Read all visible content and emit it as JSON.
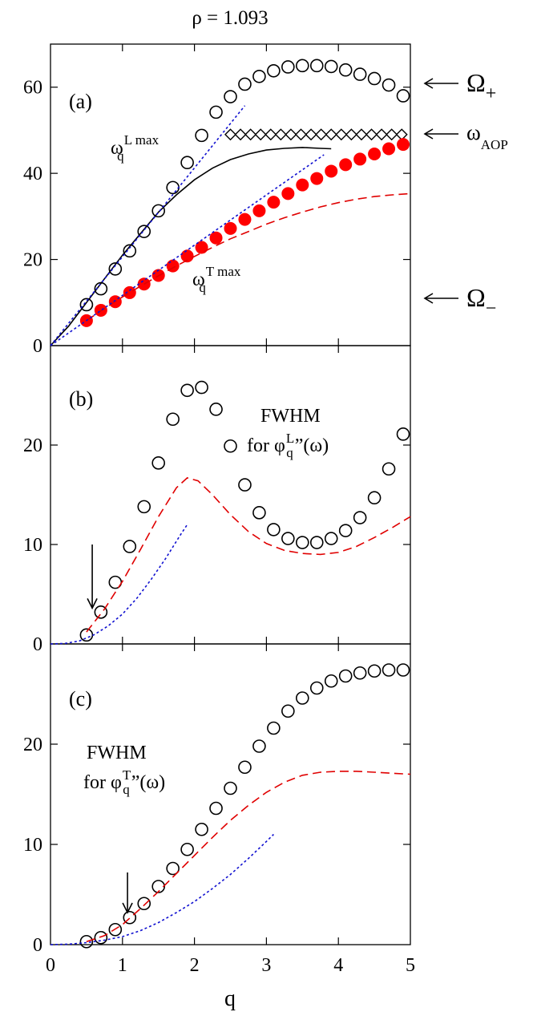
{
  "title": "ρ = 1.093",
  "xlabel": "q",
  "x_ticks": [
    "0",
    "1",
    "2",
    "3",
    "4",
    "5"
  ],
  "chart_data": [
    {
      "panel": "(a)",
      "type": "line",
      "xlim": [
        0,
        5
      ],
      "ylim": [
        0,
        70
      ],
      "y_ticks": [
        "0",
        "20",
        "40",
        "60"
      ],
      "annotations": {
        "omega_L": {
          "main": "ω",
          "sub": "q",
          "sup": "L max"
        },
        "omega_T": {
          "main": "ω",
          "sub": "q",
          "sup": "T max"
        },
        "omega_plus": {
          "main": "Ω",
          "sub": "+"
        },
        "omega_aop": {
          "main": "ω",
          "sub": "AOP"
        },
        "omega_minus": {
          "main": "Ω",
          "sub": "−"
        }
      },
      "series": [
        {
          "name": "open circles",
          "style": "open-circle",
          "x": [
            0.5,
            0.7,
            0.9,
            1.1,
            1.3,
            1.5,
            1.7,
            1.9,
            2.1,
            2.3,
            2.5,
            2.7,
            2.9,
            3.1,
            3.3,
            3.5,
            3.7,
            3.9,
            4.1,
            4.3,
            4.5,
            4.7,
            4.9
          ],
          "y": [
            9.5,
            13.2,
            17.8,
            22,
            26.5,
            31.3,
            36.7,
            42.5,
            48.8,
            54.2,
            57.8,
            60.7,
            62.5,
            63.8,
            64.7,
            65,
            65,
            64.8,
            64,
            63,
            62,
            60.5,
            58
          ]
        },
        {
          "name": "diamonds",
          "style": "diamond",
          "x": [
            2.5,
            2.64,
            2.78,
            2.92,
            3.06,
            3.2,
            3.34,
            3.48,
            3.62,
            3.76,
            3.9,
            4.04,
            4.18,
            4.32,
            4.46,
            4.6,
            4.74,
            4.88
          ],
          "y": [
            49,
            49,
            49,
            49,
            49,
            49,
            49,
            49,
            49,
            49,
            49,
            49,
            49,
            49,
            49,
            49,
            49,
            49
          ]
        },
        {
          "name": "filled circles",
          "style": "filled-circle",
          "x": [
            0.5,
            0.7,
            0.9,
            1.1,
            1.3,
            1.5,
            1.7,
            1.9,
            2.1,
            2.3,
            2.5,
            2.7,
            2.9,
            3.1,
            3.3,
            3.5,
            3.7,
            3.9,
            4.1,
            4.3,
            4.5,
            4.7,
            4.9
          ],
          "y": [
            5.8,
            8.2,
            10.2,
            12.3,
            14.3,
            16.3,
            18.5,
            20.8,
            22.8,
            25,
            27.2,
            29.3,
            31.3,
            33.3,
            35.3,
            37.3,
            38.8,
            40.5,
            42,
            43.3,
            44.5,
            45.7,
            46.7
          ]
        },
        {
          "name": "solid line",
          "style": "solid",
          "x": [
            0,
            0.25,
            0.5,
            0.75,
            1,
            1.25,
            1.5,
            1.75,
            2,
            2.25,
            2.5,
            2.75,
            3,
            3.25,
            3.5,
            3.75,
            3.9
          ],
          "y": [
            0,
            4.5,
            10,
            15.5,
            21,
            26,
            31,
            35,
            38.5,
            41.2,
            43.2,
            44.5,
            45.4,
            45.8,
            46,
            45.8,
            45.7
          ]
        },
        {
          "name": "red dashed",
          "style": "red-dashed",
          "x": [
            0.5,
            0.75,
            1,
            1.25,
            1.5,
            1.75,
            2,
            2.25,
            2.5,
            2.75,
            3,
            3.25,
            3.5,
            3.75,
            4,
            4.25,
            4.5,
            4.75,
            5
          ],
          "y": [
            5.8,
            8.6,
            11.3,
            13.8,
            16.2,
            18.5,
            20.7,
            22.8,
            24.8,
            26.5,
            28.2,
            29.7,
            31,
            32.2,
            33.2,
            34,
            34.6,
            35,
            35.3
          ]
        },
        {
          "name": "blue dotted L",
          "style": "blue-dotted",
          "x": [
            0,
            2.7
          ],
          "y": [
            0,
            55.7
          ]
        },
        {
          "name": "blue dotted T",
          "style": "blue-dotted",
          "x": [
            0,
            3.8
          ],
          "y": [
            0,
            44.3
          ]
        }
      ]
    },
    {
      "panel": "(b)",
      "type": "line",
      "xlim": [
        0,
        5
      ],
      "ylim": [
        0,
        30
      ],
      "y_ticks": [
        "0",
        "10",
        "20"
      ],
      "annotations": {
        "fwhm": "FWHM",
        "for_text": {
          "prefix": "for φ",
          "sub": "q",
          "sup": "L",
          "suffix": "”(ω)"
        }
      },
      "arrow": {
        "x": 0.58,
        "y_from": 10,
        "y_to": 3.6
      },
      "series": [
        {
          "name": "open circles",
          "style": "open-circle",
          "x": [
            0.5,
            0.7,
            0.9,
            1.1,
            1.3,
            1.5,
            1.7,
            1.9,
            2.1,
            2.3,
            2.5,
            2.7,
            2.9,
            3.1,
            3.3,
            3.5,
            3.7,
            3.9,
            4.1,
            4.3,
            4.5,
            4.7,
            4.9
          ],
          "y": [
            0.9,
            3.2,
            6.2,
            9.8,
            13.8,
            18.2,
            22.6,
            25.5,
            25.8,
            23.6,
            19.9,
            16,
            13.2,
            11.5,
            10.6,
            10.2,
            10.2,
            10.6,
            11.4,
            12.7,
            14.7,
            17.6,
            21.1
          ]
        },
        {
          "name": "red dashed",
          "style": "red-dashed",
          "x": [
            0.5,
            0.75,
            1,
            1.25,
            1.5,
            1.75,
            1.9,
            2.05,
            2.25,
            2.5,
            2.75,
            3,
            3.25,
            3.5,
            3.75,
            4,
            4.25,
            4.5,
            4.75,
            5
          ],
          "y": [
            1.2,
            3.5,
            6.3,
            9.5,
            12.8,
            15.7,
            16.7,
            16.4,
            15,
            13,
            11.3,
            10.1,
            9.4,
            9.1,
            9,
            9.2,
            9.8,
            10.7,
            11.7,
            12.8
          ]
        },
        {
          "name": "blue dotted",
          "style": "blue-dotted",
          "x": [
            0,
            0.2,
            0.4,
            0.6,
            0.8,
            1,
            1.2,
            1.4,
            1.6,
            1.8,
            1.9
          ],
          "y": [
            0,
            0.05,
            0.3,
            0.9,
            1.8,
            3,
            4.6,
            6.5,
            8.6,
            10.9,
            12
          ]
        }
      ]
    },
    {
      "panel": "(c)",
      "type": "line",
      "xlim": [
        0,
        5
      ],
      "ylim": [
        0,
        30
      ],
      "y_ticks": [
        "0",
        "10",
        "20"
      ],
      "annotations": {
        "fwhm": "FWHM",
        "for_text": {
          "prefix": "for φ",
          "sub": "q",
          "sup": "T",
          "suffix": "”(ω)"
        }
      },
      "arrow": {
        "x": 1.07,
        "y_from": 7.2,
        "y_to": 3.2
      },
      "series": [
        {
          "name": "open circles",
          "style": "open-circle",
          "x": [
            0.5,
            0.7,
            0.9,
            1.1,
            1.3,
            1.5,
            1.7,
            1.9,
            2.1,
            2.3,
            2.5,
            2.7,
            2.9,
            3.1,
            3.3,
            3.5,
            3.7,
            3.9,
            4.1,
            4.3,
            4.5,
            4.7,
            4.9
          ],
          "y": [
            0.3,
            0.7,
            1.5,
            2.7,
            4.1,
            5.8,
            7.6,
            9.5,
            11.5,
            13.6,
            15.6,
            17.7,
            19.8,
            21.6,
            23.3,
            24.6,
            25.6,
            26.3,
            26.8,
            27.1,
            27.3,
            27.4,
            27.4
          ]
        },
        {
          "name": "red dashed",
          "style": "red-dashed",
          "x": [
            0.5,
            0.75,
            1,
            1.25,
            1.5,
            1.75,
            2,
            2.25,
            2.5,
            2.75,
            3,
            3.25,
            3.5,
            3.75,
            4,
            4.25,
            4.5,
            4.75,
            5
          ],
          "y": [
            0.3,
            0.9,
            2,
            3.6,
            5.3,
            7.1,
            8.9,
            10.7,
            12.4,
            13.9,
            15.2,
            16.2,
            16.9,
            17.2,
            17.3,
            17.3,
            17.2,
            17.1,
            17
          ]
        },
        {
          "name": "blue dotted",
          "style": "blue-dotted",
          "x": [
            0,
            0.25,
            0.5,
            0.75,
            1,
            1.25,
            1.5,
            1.75,
            2,
            2.25,
            2.5,
            2.75,
            3,
            3.1
          ],
          "y": [
            0,
            0.05,
            0.2,
            0.45,
            0.8,
            1.4,
            2.2,
            3.2,
            4.3,
            5.6,
            7,
            8.6,
            10.3,
            11
          ]
        }
      ]
    }
  ]
}
